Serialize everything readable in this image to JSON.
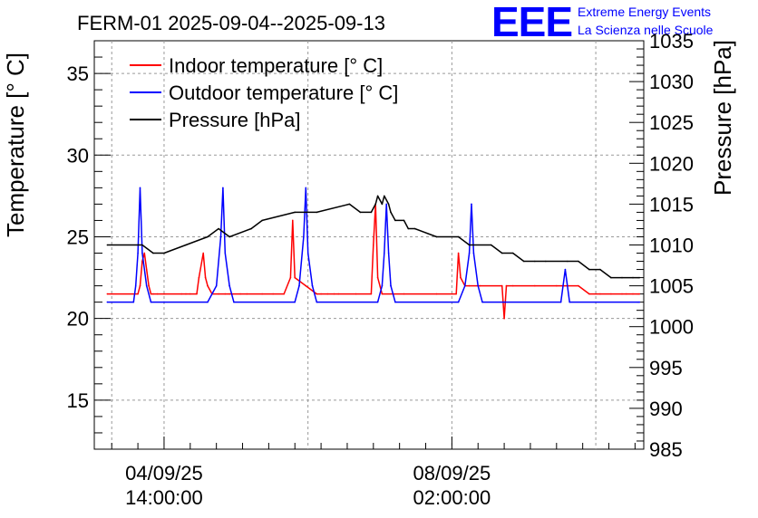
{
  "title": "FERM-01 2025-09-04--2025-09-13",
  "logo": {
    "mark": "EEE",
    "line1": "Extreme Energy Events",
    "line2": "La Scienza nelle Scuole"
  },
  "colors": {
    "indoor": "#ff0000",
    "outdoor": "#0000ff",
    "pressure": "#000000",
    "grid": "#9a9a9a",
    "logo": "#0000ff"
  },
  "chart_data": {
    "type": "line",
    "title": "FERM-01 2025-09-04--2025-09-13",
    "ylabel_left": "Temperature [° C]",
    "ylabel_right": "Pressure [hPa]",
    "xlabel": "",
    "ylim_left": [
      12,
      37
    ],
    "ylim_right": [
      985,
      1035
    ],
    "xlim_hours": [
      -32,
      220
    ],
    "y_ticks_left": [
      15,
      20,
      25,
      30,
      35
    ],
    "y_ticks_right": [
      985,
      990,
      995,
      1000,
      1005,
      1010,
      1015,
      1020,
      1025,
      1030,
      1035
    ],
    "x_ticks": [
      {
        "hours": 0,
        "date": "04/09/25",
        "time": "14:00:00"
      },
      {
        "hours": 132,
        "date": "08/09/25",
        "time": "02:00:00"
      }
    ],
    "grid": true,
    "legend_position": "top-left",
    "series": [
      {
        "name": "Indoor temperature [° C]",
        "axis": "left",
        "color": "#ff0000",
        "x": [
          -26,
          -12,
          -11,
          -10,
          -9,
          -8,
          -7,
          -6,
          -5,
          -3,
          0,
          8,
          10,
          12,
          15,
          16,
          18,
          19,
          20,
          22,
          25,
          28,
          30,
          35,
          38,
          45,
          50,
          55,
          58,
          59,
          60,
          65,
          70,
          72,
          75,
          78,
          80,
          88,
          95,
          96,
          97,
          98,
          100,
          105,
          110,
          125,
          134,
          135,
          136,
          138,
          140,
          145,
          155,
          156,
          157,
          160,
          170,
          180,
          190,
          195,
          200,
          205,
          210,
          212,
          215,
          218
        ],
        "values": [
          21.5,
          21.5,
          22,
          23.5,
          24,
          23,
          22,
          21.5,
          21.5,
          21.5,
          21.5,
          21.5,
          21.5,
          21.5,
          21.5,
          22.5,
          24,
          22.5,
          22,
          21.5,
          21.5,
          21.5,
          21.5,
          21.5,
          21.5,
          21.5,
          21.5,
          21.5,
          22.5,
          26,
          22.5,
          22,
          21.5,
          21.5,
          21.5,
          21.5,
          21.5,
          21.5,
          21.5,
          24.5,
          27,
          22.5,
          21.5,
          21.5,
          21.5,
          21.5,
          21.5,
          24,
          22.5,
          22,
          22,
          22,
          22,
          20,
          22,
          22,
          22,
          22,
          22,
          21.5,
          21.5,
          21.5,
          21.5,
          21.5,
          21.5,
          21.5
        ]
      },
      {
        "name": "Outdoor temperature [° C]",
        "axis": "left",
        "color": "#0000ff",
        "x": [
          -26,
          -14,
          -13,
          -12,
          -11,
          -10,
          -8,
          -6,
          0,
          20,
          24,
          26,
          27,
          28,
          30,
          32,
          60,
          62,
          64,
          65,
          66,
          68,
          70,
          98,
          100,
          101,
          102,
          103,
          104,
          106,
          135,
          138,
          140,
          141,
          142,
          144,
          146,
          182,
          184,
          186,
          218
        ],
        "values": [
          21,
          21,
          22,
          24,
          28,
          24,
          22,
          21,
          21,
          21,
          22,
          25,
          28,
          24,
          22,
          21,
          21,
          22,
          25,
          28,
          24,
          22,
          21,
          21,
          22,
          24,
          27,
          24,
          22,
          21,
          21,
          22,
          24,
          27,
          24,
          22,
          21,
          21,
          23,
          21,
          21
        ]
      },
      {
        "name": "Pressure [hPa]",
        "axis": "right",
        "color": "#000000",
        "x": [
          -26,
          -10,
          -5,
          0,
          10,
          20,
          25,
          30,
          40,
          45,
          60,
          70,
          85,
          90,
          95,
          97,
          98,
          100,
          101,
          103,
          104,
          106,
          110,
          112,
          115,
          125,
          135,
          140,
          150,
          155,
          160,
          165,
          170,
          175,
          185,
          190,
          195,
          200,
          205,
          210,
          215,
          218
        ],
        "values": [
          1010,
          1010,
          1009,
          1009,
          1010,
          1011,
          1012,
          1011,
          1012,
          1013,
          1014,
          1014,
          1015,
          1014,
          1014,
          1015,
          1016,
          1015,
          1016,
          1015,
          1014,
          1013,
          1013,
          1012,
          1012,
          1011,
          1011,
          1010,
          1010,
          1009,
          1009,
          1008,
          1008,
          1008,
          1008,
          1008,
          1007,
          1007,
          1006,
          1006,
          1006,
          1006
        ]
      }
    ]
  }
}
